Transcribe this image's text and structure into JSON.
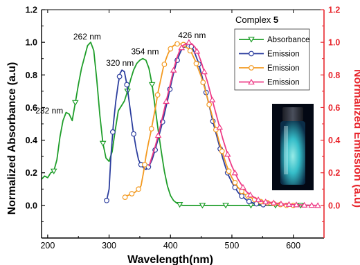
{
  "chart_data": {
    "type": "line",
    "xlabel": "Wavelength(nm)",
    "ylabel_left": "Normalized Absorbance (a.u)",
    "ylabel_right": "Normalized Emission (a.u)",
    "xlim": [
      190,
      650
    ],
    "ylim": [
      -0.2,
      1.2
    ],
    "x_ticks": [
      200,
      300,
      400,
      500,
      600
    ],
    "y_ticks": [
      "0.0",
      "0.2",
      "0.4",
      "0.6",
      "0.8",
      "1.0",
      "1.2"
    ],
    "legend": {
      "title_prefix": "Complex",
      "title_bold": "5",
      "placement": "top-right",
      "entries": [
        "Absorbance",
        "Emission",
        "Emission",
        "Emission"
      ]
    },
    "annotations": [
      {
        "text": "232 nm",
        "x": 232,
        "y": 0.58
      },
      {
        "text": "262 nm",
        "x": 262,
        "y": 1.0
      },
      {
        "text": "320 nm",
        "x": 320,
        "y": 0.83
      },
      {
        "text": "354 nm",
        "x": 354,
        "y": 0.9
      },
      {
        "text": "426 nm",
        "x": 426,
        "y": 1.0
      }
    ],
    "series": [
      {
        "name": "Absorbance",
        "axis": "left",
        "color": "#1f9e2a",
        "marker": "triangle-down",
        "points": [
          [
            190,
            0.16
          ],
          [
            195,
            0.18
          ],
          [
            200,
            0.17
          ],
          [
            205,
            0.2
          ],
          [
            210,
            0.21
          ],
          [
            215,
            0.28
          ],
          [
            220,
            0.42
          ],
          [
            225,
            0.52
          ],
          [
            230,
            0.57
          ],
          [
            235,
            0.56
          ],
          [
            240,
            0.52
          ],
          [
            245,
            0.63
          ],
          [
            250,
            0.74
          ],
          [
            255,
            0.84
          ],
          [
            260,
            0.91
          ],
          [
            265,
            0.98
          ],
          [
            270,
            1.0
          ],
          [
            275,
            0.95
          ],
          [
            280,
            0.77
          ],
          [
            285,
            0.55
          ],
          [
            290,
            0.38
          ],
          [
            295,
            0.29
          ],
          [
            300,
            0.27
          ],
          [
            305,
            0.33
          ],
          [
            310,
            0.46
          ],
          [
            315,
            0.58
          ],
          [
            320,
            0.61
          ],
          [
            325,
            0.64
          ],
          [
            330,
            0.7
          ],
          [
            335,
            0.77
          ],
          [
            340,
            0.83
          ],
          [
            345,
            0.87
          ],
          [
            350,
            0.89
          ],
          [
            355,
            0.9
          ],
          [
            360,
            0.89
          ],
          [
            365,
            0.84
          ],
          [
            370,
            0.74
          ],
          [
            375,
            0.6
          ],
          [
            380,
            0.46
          ],
          [
            385,
            0.33
          ],
          [
            390,
            0.21
          ],
          [
            395,
            0.12
          ],
          [
            400,
            0.06
          ],
          [
            405,
            0.03
          ],
          [
            410,
            0.015
          ],
          [
            415,
            0.005
          ],
          [
            420,
            0.0
          ],
          [
            440,
            0.0
          ],
          [
            480,
            0.0
          ],
          [
            520,
            0.0
          ],
          [
            560,
            0.0
          ],
          [
            600,
            0.0
          ],
          [
            630,
            0.0
          ]
        ],
        "marker_x": [
          210,
          245,
          290,
          330,
          370,
          415,
          452,
          490,
          531,
          571,
          612
        ]
      },
      {
        "name": "Emission",
        "axis": "right",
        "color": "#2c3e9e",
        "marker": "circle",
        "points": [
          [
            296,
            0.03
          ],
          [
            300,
            0.1
          ],
          [
            303,
            0.3
          ],
          [
            307,
            0.5
          ],
          [
            311,
            0.64
          ],
          [
            315,
            0.75
          ],
          [
            318,
            0.81
          ],
          [
            321,
            0.83
          ],
          [
            325,
            0.82
          ],
          [
            329,
            0.74
          ],
          [
            334,
            0.6
          ],
          [
            339,
            0.46
          ],
          [
            344,
            0.35
          ],
          [
            348,
            0.28
          ],
          [
            352,
            0.25
          ],
          [
            356,
            0.23
          ],
          [
            360,
            0.22
          ],
          [
            365,
            0.24
          ],
          [
            370,
            0.28
          ],
          [
            375,
            0.34
          ],
          [
            380,
            0.41
          ],
          [
            385,
            0.48
          ],
          [
            390,
            0.56
          ],
          [
            395,
            0.64
          ],
          [
            400,
            0.73
          ],
          [
            405,
            0.81
          ],
          [
            410,
            0.88
          ],
          [
            415,
            0.93
          ],
          [
            420,
            0.97
          ],
          [
            425,
            0.99
          ],
          [
            430,
            0.99
          ],
          [
            435,
            0.97
          ],
          [
            440,
            0.93
          ],
          [
            445,
            0.88
          ],
          [
            450,
            0.81
          ],
          [
            455,
            0.74
          ],
          [
            460,
            0.66
          ],
          [
            465,
            0.58
          ],
          [
            470,
            0.5
          ],
          [
            475,
            0.43
          ],
          [
            480,
            0.36
          ],
          [
            485,
            0.29
          ],
          [
            490,
            0.23
          ],
          [
            495,
            0.18
          ],
          [
            500,
            0.14
          ],
          [
            505,
            0.11
          ],
          [
            510,
            0.08
          ],
          [
            515,
            0.06
          ],
          [
            520,
            0.045
          ],
          [
            525,
            0.03
          ],
          [
            530,
            0.02
          ],
          [
            540,
            0.01
          ],
          [
            550,
            0.005
          ],
          [
            560,
            0.0
          ]
        ],
        "marker_x": [
          296,
          306,
          317,
          329,
          340,
          352,
          364,
          375,
          387,
          399,
          411,
          423,
          434,
          446,
          458,
          469,
          481,
          493,
          505,
          516,
          528,
          540,
          551
        ]
      },
      {
        "name": "Emission",
        "axis": "right",
        "color": "#f39a21",
        "marker": "circle",
        "points": [
          [
            326,
            0.05
          ],
          [
            330,
            0.06
          ],
          [
            336,
            0.07
          ],
          [
            342,
            0.08
          ],
          [
            348,
            0.1
          ],
          [
            352,
            0.12
          ],
          [
            356,
            0.2
          ],
          [
            360,
            0.3
          ],
          [
            364,
            0.38
          ],
          [
            368,
            0.45
          ],
          [
            372,
            0.53
          ],
          [
            376,
            0.61
          ],
          [
            380,
            0.7
          ],
          [
            384,
            0.77
          ],
          [
            388,
            0.84
          ],
          [
            392,
            0.89
          ],
          [
            396,
            0.93
          ],
          [
            400,
            0.96
          ],
          [
            405,
            0.98
          ],
          [
            410,
            0.99
          ],
          [
            415,
            0.99
          ],
          [
            420,
            0.99
          ],
          [
            425,
            0.97
          ],
          [
            430,
            0.96
          ],
          [
            435,
            0.93
          ],
          [
            440,
            0.89
          ],
          [
            445,
            0.84
          ],
          [
            450,
            0.79
          ],
          [
            455,
            0.73
          ],
          [
            460,
            0.66
          ],
          [
            465,
            0.59
          ],
          [
            470,
            0.52
          ],
          [
            475,
            0.45
          ],
          [
            480,
            0.38
          ],
          [
            485,
            0.32
          ],
          [
            490,
            0.26
          ],
          [
            495,
            0.21
          ],
          [
            500,
            0.17
          ],
          [
            505,
            0.14
          ],
          [
            510,
            0.11
          ],
          [
            515,
            0.09
          ],
          [
            520,
            0.07
          ],
          [
            530,
            0.05
          ],
          [
            540,
            0.03
          ],
          [
            550,
            0.02
          ],
          [
            560,
            0.015
          ],
          [
            570,
            0.01
          ],
          [
            580,
            0.005
          ],
          [
            590,
            0.0
          ],
          [
            600,
            0.0
          ]
        ],
        "marker_x": [
          326,
          337,
          348,
          358,
          369,
          379,
          390,
          400,
          411,
          421,
          432,
          442,
          453,
          463,
          474,
          484,
          495,
          505,
          516,
          526,
          537,
          547,
          558,
          568,
          579,
          589,
          600
        ]
      },
      {
        "name": "Emission",
        "axis": "right",
        "color": "#ee3b86",
        "marker": "triangle-up",
        "points": [
          [
            365,
            0.24
          ],
          [
            370,
            0.3
          ],
          [
            375,
            0.36
          ],
          [
            380,
            0.43
          ],
          [
            385,
            0.51
          ],
          [
            390,
            0.59
          ],
          [
            395,
            0.67
          ],
          [
            400,
            0.75
          ],
          [
            405,
            0.83
          ],
          [
            410,
            0.9
          ],
          [
            415,
            0.95
          ],
          [
            420,
            0.98
          ],
          [
            425,
            0.99
          ],
          [
            430,
            1.0
          ],
          [
            435,
            0.99
          ],
          [
            440,
            0.97
          ],
          [
            445,
            0.93
          ],
          [
            450,
            0.88
          ],
          [
            455,
            0.82
          ],
          [
            460,
            0.76
          ],
          [
            465,
            0.69
          ],
          [
            470,
            0.62
          ],
          [
            475,
            0.55
          ],
          [
            480,
            0.48
          ],
          [
            485,
            0.41
          ],
          [
            490,
            0.35
          ],
          [
            495,
            0.29
          ],
          [
            500,
            0.24
          ],
          [
            505,
            0.2
          ],
          [
            510,
            0.16
          ],
          [
            515,
            0.13
          ],
          [
            520,
            0.1
          ],
          [
            525,
            0.08
          ],
          [
            530,
            0.065
          ],
          [
            540,
            0.04
          ],
          [
            550,
            0.025
          ],
          [
            560,
            0.02
          ],
          [
            570,
            0.015
          ],
          [
            580,
            0.01
          ],
          [
            590,
            0.008
          ],
          [
            600,
            0.005
          ],
          [
            620,
            0.002
          ],
          [
            640,
            0.0
          ]
        ],
        "marker_x": [
          380,
          393,
          405,
          418,
          430,
          443,
          455,
          468,
          480,
          493,
          505,
          518,
          530,
          543,
          555,
          568,
          580,
          593,
          605,
          618,
          630,
          640
        ]
      }
    ],
    "inset_photo": "vial-fluorescence-photo"
  }
}
